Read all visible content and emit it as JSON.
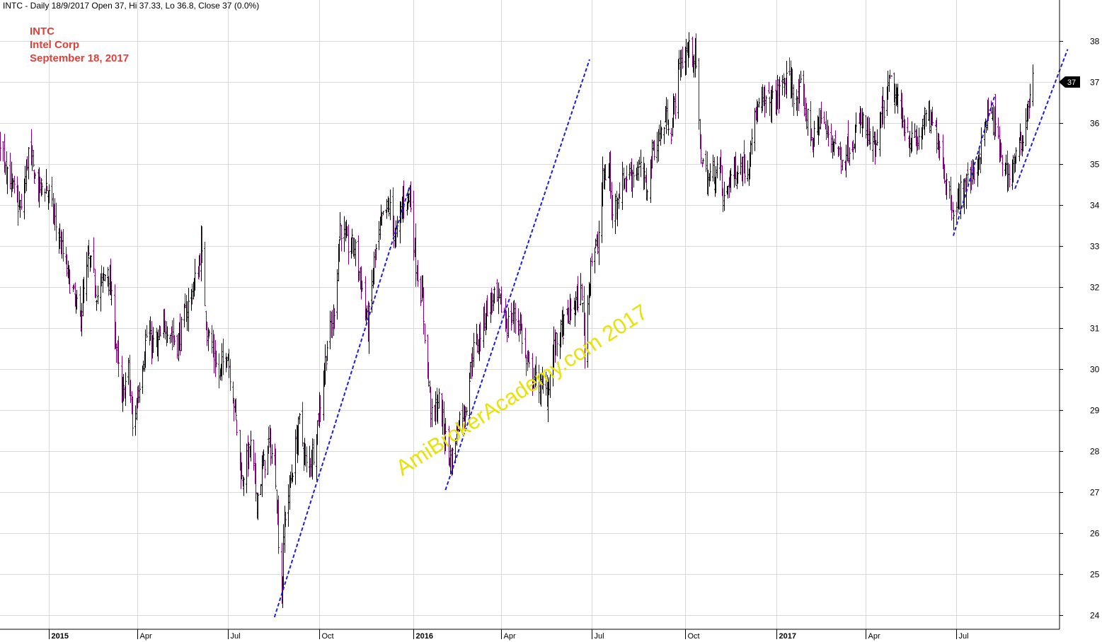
{
  "header": {
    "info": "INTC - Daily 18/9/2017 Open 37, Hi 37.33, Lo 36.8, Close 37 (0.0%)"
  },
  "annotation": {
    "ticker": "INTC",
    "company": "Intel Corp",
    "date": "September 18, 2017"
  },
  "watermark": "AmiBrokerAcademy.com  2017",
  "colors": {
    "up": "#000000",
    "down": "#800080",
    "trendline": "#1f1fd6",
    "annotation": "#e0403a",
    "watermark": "#e7e20b",
    "grid": "#d9d9d9"
  },
  "chart_data": {
    "type": "ohlc",
    "price_scale": {
      "min": 24,
      "max": 38,
      "ticks": [
        24,
        25,
        26,
        27,
        28,
        29,
        30,
        31,
        32,
        33,
        34,
        35,
        36,
        37,
        38
      ]
    },
    "last_price_label": "37",
    "x_labels": [
      {
        "label": "2015",
        "date": "2015-01-02",
        "bold": true
      },
      {
        "label": "Apr",
        "date": "2015-04-01",
        "bold": false
      },
      {
        "label": "Jul",
        "date": "2015-07-01",
        "bold": false
      },
      {
        "label": "Oct",
        "date": "2015-10-01",
        "bold": false
      },
      {
        "label": "2016",
        "date": "2016-01-04",
        "bold": true
      },
      {
        "label": "Apr",
        "date": "2016-04-01",
        "bold": false
      },
      {
        "label": "Jul",
        "date": "2016-07-01",
        "bold": false
      },
      {
        "label": "Oct",
        "date": "2016-10-03",
        "bold": false
      },
      {
        "label": "2017",
        "date": "2017-01-03",
        "bold": true
      },
      {
        "label": "Apr",
        "date": "2017-04-03",
        "bold": false
      },
      {
        "label": "Jul",
        "date": "2017-07-03",
        "bold": false
      }
    ],
    "close_path": [
      [
        "2014-10-06",
        32.0
      ],
      [
        "2014-10-20",
        34.0
      ],
      [
        "2014-11-03",
        35.2
      ],
      [
        "2014-11-14",
        35.6
      ],
      [
        "2014-11-25",
        34.5
      ],
      [
        "2014-12-05",
        33.8
      ],
      [
        "2014-12-12",
        35.3
      ],
      [
        "2014-12-22",
        34.4
      ],
      [
        "2014-12-30",
        34.5
      ],
      [
        "2015-01-20",
        32.4
      ],
      [
        "2015-02-02",
        31.2
      ],
      [
        "2015-02-11",
        32.7
      ],
      [
        "2015-02-20",
        31.8
      ],
      [
        "2015-03-02",
        32.5
      ],
      [
        "2015-03-09",
        31.0
      ],
      [
        "2015-03-16",
        29.2
      ],
      [
        "2015-03-23",
        30.0
      ],
      [
        "2015-03-27",
        28.5
      ],
      [
        "2015-04-03",
        29.7
      ],
      [
        "2015-04-10",
        30.8
      ],
      [
        "2015-04-20",
        30.5
      ],
      [
        "2015-04-30",
        31.1
      ],
      [
        "2015-05-11",
        30.6
      ],
      [
        "2015-05-21",
        31.5
      ],
      [
        "2015-06-01",
        32.4
      ],
      [
        "2015-06-04",
        33.0
      ],
      [
        "2015-06-10",
        31.0
      ],
      [
        "2015-06-22",
        29.8
      ],
      [
        "2015-06-30",
        30.5
      ],
      [
        "2015-07-08",
        29.0
      ],
      [
        "2015-07-15",
        27.3
      ],
      [
        "2015-07-24",
        28.1
      ],
      [
        "2015-07-30",
        26.8
      ],
      [
        "2015-08-05",
        27.6
      ],
      [
        "2015-08-12",
        28.2
      ],
      [
        "2015-08-18",
        27.4
      ],
      [
        "2015-08-24",
        24.4
      ],
      [
        "2015-08-27",
        26.3
      ],
      [
        "2015-09-04",
        27.6
      ],
      [
        "2015-09-11",
        28.7
      ],
      [
        "2015-09-18",
        27.6
      ],
      [
        "2015-09-25",
        28.0
      ],
      [
        "2015-10-02",
        29.2
      ],
      [
        "2015-10-09",
        30.6
      ],
      [
        "2015-10-15",
        31.2
      ],
      [
        "2015-10-22",
        33.5
      ],
      [
        "2015-10-29",
        33.0
      ],
      [
        "2015-11-05",
        33.0
      ],
      [
        "2015-11-12",
        32.1
      ],
      [
        "2015-11-19",
        31.0
      ],
      [
        "2015-11-25",
        32.6
      ],
      [
        "2015-12-03",
        33.6
      ],
      [
        "2015-12-10",
        34.0
      ],
      [
        "2015-12-17",
        33.2
      ],
      [
        "2015-12-24",
        34.1
      ],
      [
        "2015-12-31",
        34.3
      ],
      [
        "2016-01-06",
        32.6
      ],
      [
        "2016-01-13",
        31.6
      ],
      [
        "2016-01-15",
        30.9
      ],
      [
        "2016-01-22",
        28.8
      ],
      [
        "2016-01-29",
        29.2
      ],
      [
        "2016-02-05",
        28.3
      ],
      [
        "2016-02-11",
        27.7
      ],
      [
        "2016-02-18",
        28.8
      ],
      [
        "2016-02-25",
        29.0
      ],
      [
        "2016-03-03",
        30.4
      ],
      [
        "2016-03-10",
        30.8
      ],
      [
        "2016-03-17",
        31.5
      ],
      [
        "2016-03-24",
        31.7
      ],
      [
        "2016-03-31",
        31.6
      ],
      [
        "2016-04-07",
        31.1
      ],
      [
        "2016-04-14",
        31.3
      ],
      [
        "2016-04-20",
        31.1
      ],
      [
        "2016-04-26",
        30.1
      ],
      [
        "2016-05-03",
        29.8
      ],
      [
        "2016-05-10",
        29.6
      ],
      [
        "2016-05-17",
        29.4
      ],
      [
        "2016-05-24",
        30.5
      ],
      [
        "2016-05-31",
        30.9
      ],
      [
        "2016-06-07",
        31.3
      ],
      [
        "2016-06-14",
        31.6
      ],
      [
        "2016-06-21",
        31.9
      ],
      [
        "2016-06-24",
        30.5
      ],
      [
        "2016-06-30",
        32.7
      ],
      [
        "2016-07-07",
        33.0
      ],
      [
        "2016-07-12",
        34.6
      ],
      [
        "2016-07-19",
        34.9
      ],
      [
        "2016-07-21",
        33.8
      ],
      [
        "2016-07-28",
        34.3
      ],
      [
        "2016-08-04",
        34.7
      ],
      [
        "2016-08-11",
        34.8
      ],
      [
        "2016-08-18",
        34.9
      ],
      [
        "2016-08-25",
        34.4
      ],
      [
        "2016-09-01",
        35.4
      ],
      [
        "2016-09-08",
        35.7
      ],
      [
        "2016-09-15",
        36.2
      ],
      [
        "2016-09-19",
        35.8
      ],
      [
        "2016-09-26",
        37.3
      ],
      [
        "2016-10-03",
        37.7
      ],
      [
        "2016-10-10",
        37.8
      ],
      [
        "2016-10-14",
        37.4
      ],
      [
        "2016-10-18",
        35.4
      ],
      [
        "2016-10-25",
        34.6
      ],
      [
        "2016-11-01",
        34.8
      ],
      [
        "2016-11-08",
        34.9
      ],
      [
        "2016-11-10",
        34.0
      ],
      [
        "2016-11-17",
        34.7
      ],
      [
        "2016-11-24",
        34.9
      ],
      [
        "2016-12-01",
        35.0
      ],
      [
        "2016-12-05",
        34.8
      ],
      [
        "2016-12-08",
        35.7
      ],
      [
        "2016-12-15",
        36.3
      ],
      [
        "2016-12-22",
        36.5
      ],
      [
        "2016-12-29",
        36.5
      ],
      [
        "2017-01-05",
        36.7
      ],
      [
        "2017-01-10",
        37.0
      ],
      [
        "2017-01-17",
        37.0
      ],
      [
        "2017-01-24",
        36.4
      ],
      [
        "2017-01-27",
        36.8
      ],
      [
        "2017-02-02",
        36.2
      ],
      [
        "2017-02-09",
        35.5
      ],
      [
        "2017-02-16",
        36.2
      ],
      [
        "2017-02-23",
        35.7
      ],
      [
        "2017-03-02",
        35.6
      ],
      [
        "2017-03-09",
        35.1
      ],
      [
        "2017-03-16",
        35.4
      ],
      [
        "2017-03-23",
        35.7
      ],
      [
        "2017-03-30",
        36.1
      ],
      [
        "2017-04-06",
        35.6
      ],
      [
        "2017-04-13",
        35.3
      ],
      [
        "2017-04-20",
        36.3
      ],
      [
        "2017-04-27",
        37.0
      ],
      [
        "2017-05-04",
        36.5
      ],
      [
        "2017-05-11",
        36.0
      ],
      [
        "2017-05-18",
        35.6
      ],
      [
        "2017-05-25",
        35.5
      ],
      [
        "2017-06-01",
        36.1
      ],
      [
        "2017-06-08",
        36.0
      ],
      [
        "2017-06-15",
        35.6
      ],
      [
        "2017-06-22",
        34.6
      ],
      [
        "2017-06-29",
        34.0
      ],
      [
        "2017-07-03",
        33.8
      ],
      [
        "2017-07-07",
        34.3
      ],
      [
        "2017-07-14",
        34.6
      ],
      [
        "2017-07-21",
        34.8
      ],
      [
        "2017-07-28",
        35.4
      ],
      [
        "2017-08-03",
        36.3
      ],
      [
        "2017-08-10",
        36.0
      ],
      [
        "2017-08-17",
        35.2
      ],
      [
        "2017-08-24",
        34.7
      ],
      [
        "2017-08-31",
        35.1
      ],
      [
        "2017-09-07",
        35.6
      ],
      [
        "2017-09-13",
        36.5
      ],
      [
        "2017-09-18",
        37.0
      ]
    ],
    "trendlines": [
      {
        "from": [
          "2015-08-17",
          23.95
        ],
        "to": [
          "2015-12-31",
          34.45
        ]
      },
      {
        "from": [
          "2016-02-05",
          27.05
        ],
        "to": [
          "2016-06-29",
          37.55
        ]
      },
      {
        "from": [
          "2017-06-30",
          33.25
        ],
        "to": [
          "2017-08-11",
          36.7
        ]
      },
      {
        "from": [
          "2017-08-31",
          34.4
        ],
        "to": [
          "2017-10-23",
          37.8
        ]
      }
    ]
  }
}
